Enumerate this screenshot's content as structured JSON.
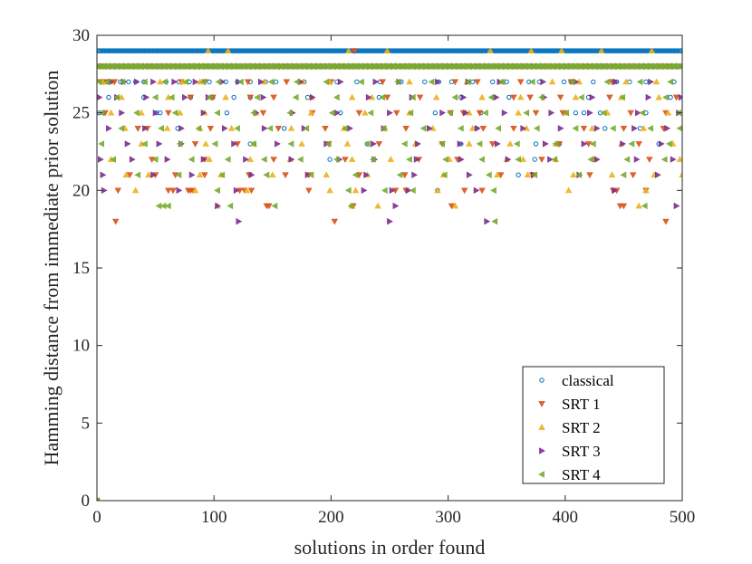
{
  "chart_data": {
    "type": "scatter",
    "title": "",
    "xlabel": "solutions in order found",
    "ylabel": "Hamming distance from immediate prior solution",
    "xlim": [
      0,
      500
    ],
    "ylim": [
      0,
      30
    ],
    "xticks": [
      0,
      100,
      200,
      300,
      400,
      500
    ],
    "yticks": [
      0,
      5,
      10,
      15,
      20,
      25,
      30
    ],
    "legend_position": "bottom-right",
    "series": [
      {
        "name": "classical",
        "marker": "circle",
        "color": "#0072BD",
        "rows": [
          {
            "y": 29,
            "x_range": [
              1,
              499
            ],
            "step": 1
          },
          {
            "y": 28,
            "x": [
              3,
              6,
              9,
              12,
              15,
              18,
              21,
              24,
              27,
              30,
              40,
              60,
              90,
              130,
              170,
              210,
              250,
              290,
              330,
              370,
              410,
              450,
              490
            ]
          },
          {
            "y": 27,
            "x": [
              8,
              20,
              27,
              33,
              40,
              59,
              70,
              79,
              96,
              110,
              120,
              131,
              144,
              153,
              177,
              205,
              222,
              242,
              260,
              280,
              292,
              303,
              321,
              338,
              350,
              369,
              378,
              399,
              405,
              424,
              444,
              455,
              469,
              493
            ]
          },
          {
            "y": 26,
            "x": [
              10,
              40,
              80,
              99,
              117,
              131,
              180,
              241,
              311,
              339,
              352,
              420,
              490
            ]
          },
          {
            "y": 25,
            "x": [
              2,
              51,
              54,
              111,
              208,
              289,
              328,
              409,
              416,
              430,
              469
            ]
          },
          {
            "y": 24,
            "x": [
              69,
              160,
              324,
              434,
              464
            ]
          },
          {
            "y": 23,
            "x": [
              131,
              231,
              311,
              375,
              395,
              480
            ]
          },
          {
            "y": 22,
            "x": [
              199,
              374
            ]
          },
          {
            "y": 21,
            "x": [
              360
            ]
          },
          {
            "y": 20,
            "x": [
              291
            ]
          },
          {
            "y": 0,
            "x": [
              0
            ]
          }
        ]
      },
      {
        "name": "SRT 1",
        "marker": "triangle-down",
        "color": "#D95319",
        "rows": [
          {
            "y": 29,
            "x": [
              220
            ]
          },
          {
            "y": 28,
            "x_range": [
              0,
              500
            ],
            "step": 4
          },
          {
            "y": 27,
            "x": [
              3,
              6,
              10,
              15,
              72,
              92,
              129,
              162,
              200,
              244,
              306,
              325,
              362,
              405,
              440
            ]
          },
          {
            "y": 26,
            "x": [
              80,
              99,
              131,
              151,
              248,
              276,
              356,
              370,
              396,
              438,
              495
            ]
          },
          {
            "y": 25,
            "x": [
              7,
              61,
              142,
              184,
              224,
              256,
              302,
              313,
              327,
              375,
              398,
              456,
              486
            ]
          },
          {
            "y": 24,
            "x": [
              35,
              43,
              97,
              155,
              195,
              264,
              330,
              356,
              416,
              450,
              484
            ]
          },
          {
            "y": 23,
            "x": [
              84,
              120,
              198,
              241,
              295,
              338,
              395,
              420,
              463
            ]
          },
          {
            "y": 22,
            "x": [
              47,
              92,
              151,
              212,
              275,
              308,
              380,
              472
            ]
          },
          {
            "y": 21,
            "x": [
              28,
              50,
              67,
              92,
              130,
              161,
              181,
              224,
              263,
              345,
              372,
              421,
              458
            ]
          },
          {
            "y": 20,
            "x": [
              18,
              61,
              65,
              78,
              80,
              82,
              122,
              126,
              132,
              181,
              255,
              264,
              314,
              329,
              441,
              444,
              469
            ]
          },
          {
            "y": 19,
            "x": [
              145,
              147,
              219,
              303,
              447,
              450
            ]
          },
          {
            "y": 18,
            "x": [
              16,
              203,
              486
            ]
          },
          {
            "y": 0,
            "x": [
              0
            ]
          }
        ]
      },
      {
        "name": "SRT 2",
        "marker": "triangle-up",
        "color": "#EDB120",
        "rows": [
          {
            "y": 29,
            "x": [
              95,
              112,
              215,
              248,
              336,
              371,
              397,
              431,
              474
            ]
          },
          {
            "y": 28,
            "x_range": [
              2,
              498
            ],
            "step": 4
          },
          {
            "y": 27,
            "x": [
              5,
              12,
              54,
              73,
              88,
              143,
              176,
              199,
              267,
              316,
              346,
              389,
              412,
              452,
              478
            ]
          },
          {
            "y": 26,
            "x": [
              21,
              61,
              110,
              183,
              218,
              235,
              290,
              329,
              362,
              409,
              448,
              480
            ]
          },
          {
            "y": 25,
            "x": [
              12,
              38,
              71,
              92,
              136,
              183,
              229,
              267,
              318,
              360,
              401,
              436,
              488
            ]
          },
          {
            "y": 24,
            "x": [
              24,
              60,
              88,
              115,
              166,
              211,
              246,
              287,
              321,
              367,
              423,
              467
            ]
          },
          {
            "y": 23,
            "x": [
              38,
              93,
              134,
              175,
              214,
              272,
              318,
              353,
              392,
              448,
              492
            ]
          },
          {
            "y": 22,
            "x": [
              12,
              96,
              131,
              165,
              218,
              251,
              301,
              350,
              364,
              392,
              425,
              498
            ]
          },
          {
            "y": 21,
            "x": [
              25,
              44,
              88,
              106,
              150,
              196,
              231,
              296,
              342,
              368,
              407,
              440,
              476,
              500
            ]
          },
          {
            "y": 20,
            "x": [
              33,
              84,
              128,
              199,
              221,
              291,
              403,
              469
            ]
          },
          {
            "y": 19,
            "x": [
              103,
              218,
              240,
              306,
              463
            ]
          },
          {
            "y": 0,
            "x": [
              0
            ]
          }
        ]
      },
      {
        "name": "SRT 3",
        "marker": "triangle-right",
        "color": "#7E2F8E",
        "rows": [
          {
            "y": 28,
            "x_range": [
              1,
              499
            ],
            "step": 4
          },
          {
            "y": 27,
            "x": [
              12,
              23,
              34,
              48,
              66,
              84,
              107,
              121,
              140,
              174,
              208,
              238,
              258,
              291,
              317,
              344,
              381,
              409,
              443,
              473
            ]
          },
          {
            "y": 26,
            "x": [
              2,
              17,
              42,
              75,
              95,
              142,
              184,
              232,
              269,
              313,
              341,
              382,
              423,
              471,
              499
            ]
          },
          {
            "y": 25,
            "x": [
              21,
              50,
              91,
              136,
              167,
              205,
              250,
              295,
              315,
              348,
              388,
              421,
              462,
              497
            ]
          },
          {
            "y": 24,
            "x": [
              10,
              41,
              72,
              109,
              143,
              177,
              216,
              245,
              284,
              325,
              364,
              396,
              427,
              459,
              487
            ]
          },
          {
            "y": 23,
            "x": [
              26,
              53,
              72,
              117,
              154,
              196,
              236,
              274,
              310,
              342,
              383,
              416,
              449,
              482
            ]
          },
          {
            "y": 22,
            "x": [
              3,
              30,
              60,
              91,
              127,
              166,
              207,
              237,
              273,
              311,
              351,
              387,
              427,
              461,
              492
            ]
          },
          {
            "y": 21,
            "x": [
              5,
              48,
              81,
              132,
              180,
              230,
              271,
              318,
              373,
              412,
              479
            ]
          },
          {
            "y": 20,
            "x": [
              6,
              70,
              119,
              228,
              252,
              266,
              324,
              442
            ]
          },
          {
            "y": 19,
            "x": [
              103,
              255,
              495
            ]
          },
          {
            "y": 18,
            "x": [
              121,
              250,
              333
            ]
          },
          {
            "y": 0,
            "x": [
              0
            ]
          }
        ]
      },
      {
        "name": "SRT 4",
        "marker": "triangle-left",
        "color": "#77AC30",
        "rows": [
          {
            "y": 28,
            "x_range": [
              0,
              500
            ],
            "step": 2
          },
          {
            "y": 27,
            "x": [
              2,
              9,
              22,
              41,
              58,
              76,
              91,
              104,
              123,
              149,
              171,
              196,
              226,
              257,
              286,
              317,
              346,
              372,
              406,
              436,
              464,
              490
            ]
          },
          {
            "y": 26,
            "x": [
              17,
              50,
              64,
              96,
              137,
              170,
              205,
              244,
              270,
              306,
              337,
              380,
              414,
              449,
              486
            ]
          },
          {
            "y": 25,
            "x": [
              4,
              34,
              67,
              103,
              134,
              165,
              201,
              234,
              268,
              302,
              332,
              367,
              401,
              433,
              466,
              497
            ]
          },
          {
            "y": 24,
            "x": [
              21,
              55,
              87,
              120,
              148,
              179,
              212,
              245,
              279,
              311,
              343,
              376,
              409,
              441,
              473,
              498
            ]
          },
          {
            "y": 23,
            "x": [
              4,
              41,
              71,
              101,
              134,
              166,
              198,
              231,
              263,
              295,
              327,
              359,
              392,
              424,
              457,
              489
            ]
          },
          {
            "y": 22,
            "x": [
              14,
              50,
              81,
              112,
              143,
              174,
              205,
              236,
              267,
              298,
              329,
              360,
              391,
              422,
              453,
              485
            ]
          },
          {
            "y": 21,
            "x": [
              35,
              70,
              107,
              145,
              183,
              221,
              259,
              297,
              335,
              374,
              412,
              450
            ]
          },
          {
            "y": 20,
            "x": [
              103,
              215,
              246,
              270,
              339
            ]
          },
          {
            "y": 19,
            "x": [
              53,
              57,
              61,
              114,
              152,
              217,
              468
            ]
          },
          {
            "y": 18,
            "x": [
              340
            ]
          },
          {
            "y": 0,
            "x": [
              0
            ]
          }
        ]
      }
    ]
  }
}
